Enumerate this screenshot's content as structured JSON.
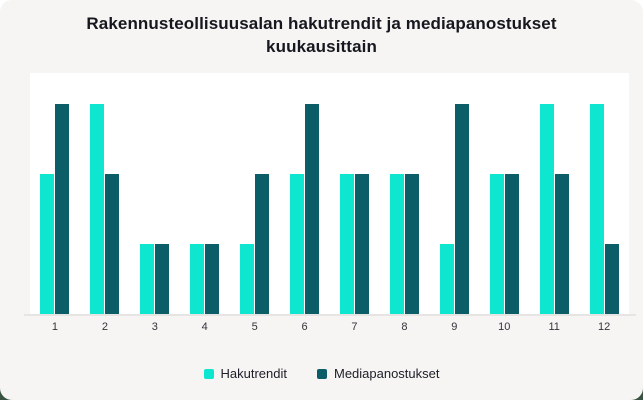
{
  "page": {
    "card_background": "#f6f5f3",
    "outer_top_color": "#ffffff",
    "outer_bottom_color": "#3a5443",
    "plot_background": "#ffffff",
    "axis_line_color": "#e6e5e3",
    "title_color": "#17171f",
    "tick_label_color": "#33333b",
    "legend_text_color": "#20202a"
  },
  "title": "Rakennusteollisuusalan hakutrendit ja mediapanostukset kuukausittain",
  "chart_data": {
    "type": "bar",
    "title": "Rakennusteollisuusalan hakutrendit ja mediapanostukset kuukausittain",
    "categories": [
      "1",
      "2",
      "3",
      "4",
      "5",
      "6",
      "7",
      "8",
      "9",
      "10",
      "11",
      "12"
    ],
    "series": [
      {
        "name": "Hakutrendit",
        "color": "#0ee6cf",
        "values": [
          2,
          3,
          1,
          1,
          1,
          2,
          2,
          2,
          1,
          2,
          3,
          3
        ]
      },
      {
        "name": "Mediapanostukset",
        "color": "#0b5e68",
        "values": [
          3,
          2,
          1,
          1,
          2,
          3,
          2,
          2,
          3,
          2,
          2,
          1
        ]
      }
    ],
    "xlabel": "",
    "ylabel": "",
    "ylim": [
      0,
      3.44
    ],
    "grid": false,
    "y_axis_labels_visible": false,
    "legend_position": "bottom"
  }
}
